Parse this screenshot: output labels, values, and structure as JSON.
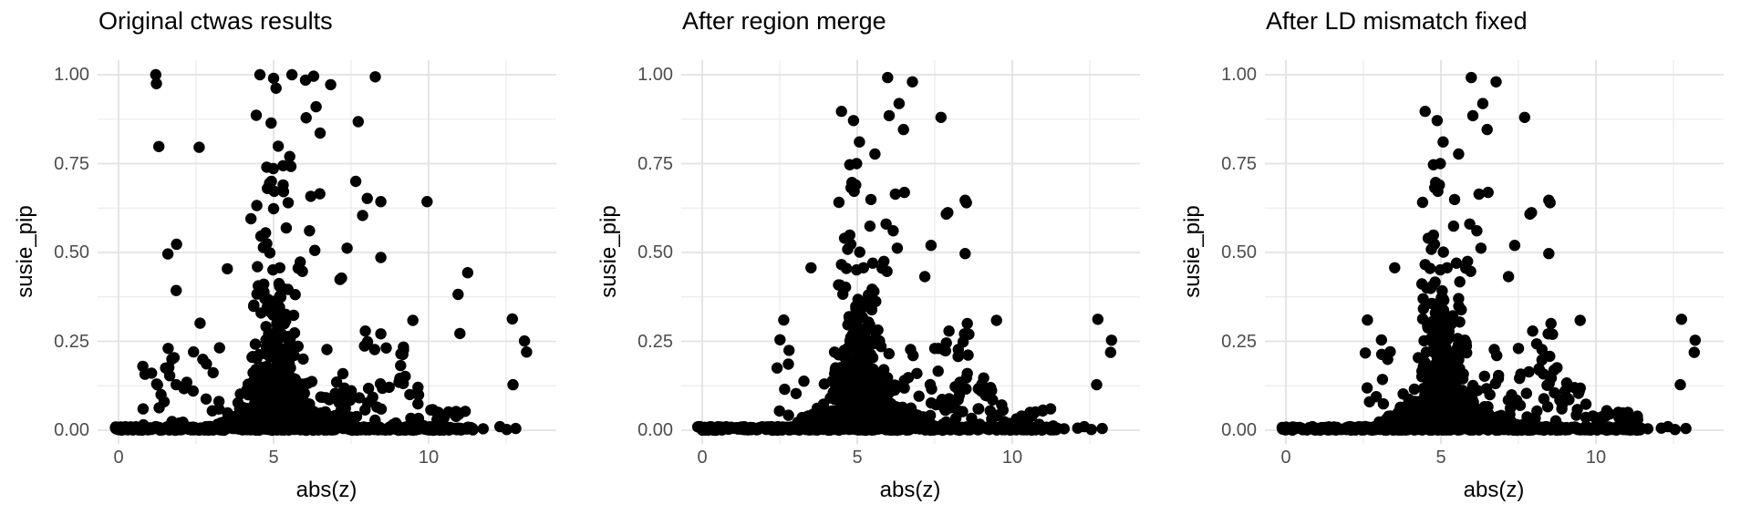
{
  "figure": {
    "background": "#ffffff",
    "point_color": "#000000",
    "grid_major_color": "#e2e2e2",
    "grid_minor_color": "#ebebeb",
    "tick_label_color": "#4d4d4d",
    "title_color": "#000000"
  },
  "chart_data": [
    {
      "type": "scatter",
      "title": "Original ctwas results",
      "xlabel": "abs(z)",
      "ylabel": "susie_pip",
      "xlim": [
        -0.675,
        14.175
      ],
      "ylim": [
        -0.038,
        1.042
      ],
      "xticks": [
        0,
        5,
        10
      ],
      "xticklabels": [
        "0",
        "5",
        "10"
      ],
      "yticks": [
        0,
        0.25,
        0.5,
        0.75,
        1
      ],
      "yticklabels": [
        "0.00",
        "0.25",
        "0.50",
        "0.75",
        "1.00"
      ],
      "grid_minor_x": [
        2.5,
        7.5,
        12.5
      ],
      "grid_minor_y": [
        0.125,
        0.375,
        0.625,
        0.875
      ],
      "legend": "none",
      "points": [
        [
          1.2,
          1.0
        ],
        [
          1.22,
          0.975
        ],
        [
          4.56,
          1.0
        ],
        [
          5.0,
          0.99
        ],
        [
          5.08,
          0.962
        ],
        [
          5.59,
          1.0
        ],
        [
          6.03,
          0.985
        ],
        [
          6.29,
          0.996
        ],
        [
          6.84,
          0.972
        ],
        [
          8.28,
          0.994
        ],
        [
          6.37,
          0.91
        ],
        [
          4.44,
          0.886
        ],
        [
          4.92,
          0.864
        ],
        [
          6.05,
          0.879
        ],
        [
          6.5,
          0.836
        ],
        [
          7.73,
          0.868
        ],
        [
          1.3,
          0.798
        ],
        [
          2.6,
          0.796
        ],
        [
          5.15,
          0.799
        ],
        [
          5.52,
          0.77
        ],
        [
          5.31,
          0.744
        ],
        [
          5.56,
          0.742
        ],
        [
          4.78,
          0.74
        ],
        [
          4.99,
          0.736
        ],
        [
          7.65,
          0.7
        ],
        [
          4.87,
          0.695
        ],
        [
          5.31,
          0.69
        ],
        [
          4.8,
          0.68
        ],
        [
          4.93,
          0.7
        ],
        [
          5.02,
          0.672
        ],
        [
          5.32,
          0.671
        ],
        [
          5.47,
          0.64
        ],
        [
          4.46,
          0.632
        ],
        [
          5.0,
          0.623
        ],
        [
          6.2,
          0.658
        ],
        [
          6.49,
          0.665
        ],
        [
          8.02,
          0.652
        ],
        [
          8.46,
          0.643
        ],
        [
          9.95,
          0.643
        ],
        [
          7.87,
          0.604
        ],
        [
          4.27,
          0.595
        ],
        [
          5.41,
          0.569
        ],
        [
          6.16,
          0.561
        ],
        [
          4.74,
          0.555
        ],
        [
          4.59,
          0.546
        ],
        [
          4.78,
          0.525
        ],
        [
          4.67,
          0.514
        ],
        [
          4.88,
          0.499
        ],
        [
          6.33,
          0.506
        ],
        [
          7.37,
          0.512
        ],
        [
          1.87,
          0.523
        ],
        [
          1.59,
          0.496
        ],
        [
          8.46,
          0.486
        ],
        [
          3.51,
          0.454
        ],
        [
          4.48,
          0.46
        ],
        [
          4.98,
          0.451
        ],
        [
          5.2,
          0.457
        ],
        [
          5.86,
          0.473
        ],
        [
          5.79,
          0.456
        ],
        [
          11.26,
          0.443
        ],
        [
          7.19,
          0.428
        ],
        [
          7.14,
          0.424
        ],
        [
          5.93,
          0.447
        ],
        [
          1.86,
          0.393
        ],
        [
          2.63,
          0.301
        ],
        [
          1.6,
          0.23
        ],
        [
          1.79,
          0.204
        ],
        [
          9.49,
          0.309
        ],
        [
          10.95,
          0.382
        ],
        [
          11.01,
          0.272
        ],
        [
          12.7,
          0.313
        ],
        [
          13.09,
          0.251
        ],
        [
          13.16,
          0.22
        ],
        [
          12.72,
          0.128
        ],
        [
          7.96,
          0.279
        ],
        [
          8.46,
          0.271
        ],
        [
          8.26,
          0.227
        ],
        [
          6.72,
          0.227
        ],
        [
          0.79,
          0.06
        ],
        [
          1.23,
          0.13
        ],
        [
          1.37,
          0.1
        ],
        [
          1.47,
          0.08
        ],
        [
          1.72,
          0.2
        ],
        [
          1.86,
          0.128
        ],
        [
          1.96,
          0.02
        ],
        [
          2.2,
          0.135
        ],
        [
          11.23,
          0.004
        ],
        [
          11.76,
          0.004
        ],
        [
          12.3,
          0.01
        ],
        [
          12.52,
          0.002
        ],
        [
          12.81,
          0.005
        ]
      ],
      "dense_clusters": [
        {
          "kind": "band",
          "x0": -0.15,
          "x1": 10.9,
          "y0": 0.0,
          "y1": 0.01,
          "n": 470
        },
        {
          "kind": "band",
          "x0": 10.9,
          "x1": 11.5,
          "y0": 0.0,
          "y1": 0.008,
          "n": 14
        },
        {
          "kind": "cone",
          "x0": 2.2,
          "x1": 8.6,
          "cx": 5.1,
          "y0": 0.008,
          "y1": 0.065,
          "n": 300
        },
        {
          "kind": "cone",
          "x0": 3.0,
          "x1": 7.4,
          "cx": 5.05,
          "y0": 0.03,
          "y1": 0.14,
          "n": 230
        },
        {
          "kind": "cone",
          "x0": 3.6,
          "x1": 6.7,
          "cx": 5.0,
          "y0": 0.1,
          "y1": 0.24,
          "n": 110
        },
        {
          "kind": "cone",
          "x0": 4.1,
          "x1": 6.3,
          "cx": 5.05,
          "y0": 0.2,
          "y1": 0.37,
          "n": 60
        },
        {
          "kind": "band",
          "x0": 4.35,
          "x1": 5.75,
          "y0": 0.28,
          "y1": 0.42,
          "n": 22
        },
        {
          "kind": "band",
          "x0": 6.4,
          "x1": 9.7,
          "y0": 0.015,
          "y1": 0.16,
          "n": 48
        },
        {
          "kind": "band",
          "x0": 7.6,
          "x1": 9.2,
          "y0": 0.16,
          "y1": 0.25,
          "n": 8
        },
        {
          "kind": "band",
          "x0": 9.7,
          "x1": 11.35,
          "y0": 0.004,
          "y1": 0.06,
          "n": 22
        },
        {
          "kind": "band",
          "x0": 2.4,
          "x1": 3.4,
          "y0": 0.03,
          "y1": 0.26,
          "n": 10
        },
        {
          "kind": "band",
          "x0": 0.55,
          "x1": 2.15,
          "y0": 0.015,
          "y1": 0.18,
          "n": 12
        }
      ]
    },
    {
      "type": "scatter",
      "title": "After region merge",
      "xlabel": "abs(z)",
      "ylabel": "susie_pip",
      "xlim": [
        -0.675,
        14.175
      ],
      "ylim": [
        -0.038,
        1.042
      ],
      "xticks": [
        0,
        5,
        10
      ],
      "xticklabels": [
        "0",
        "5",
        "10"
      ],
      "yticks": [
        0,
        0.25,
        0.5,
        0.75,
        1
      ],
      "yticklabels": [
        "0.00",
        "0.25",
        "0.50",
        "0.75",
        "1.00"
      ],
      "grid_minor_x": [
        2.5,
        7.5,
        12.5
      ],
      "grid_minor_y": [
        0.125,
        0.375,
        0.625,
        0.875
      ],
      "legend": "none",
      "points": [
        [
          5.98,
          0.992
        ],
        [
          6.78,
          0.98
        ],
        [
          6.35,
          0.919
        ],
        [
          4.49,
          0.897
        ],
        [
          4.88,
          0.871
        ],
        [
          6.03,
          0.885
        ],
        [
          7.7,
          0.88
        ],
        [
          6.49,
          0.846
        ],
        [
          5.07,
          0.811
        ],
        [
          5.57,
          0.777
        ],
        [
          4.76,
          0.747
        ],
        [
          4.98,
          0.75
        ],
        [
          4.83,
          0.697
        ],
        [
          4.95,
          0.69
        ],
        [
          4.8,
          0.682
        ],
        [
          4.9,
          0.672
        ],
        [
          5.44,
          0.649
        ],
        [
          6.23,
          0.664
        ],
        [
          6.52,
          0.669
        ],
        [
          4.41,
          0.641
        ],
        [
          8.48,
          0.647
        ],
        [
          8.52,
          0.64
        ],
        [
          7.87,
          0.608
        ],
        [
          7.92,
          0.612
        ],
        [
          5.41,
          0.574
        ],
        [
          6.16,
          0.561
        ],
        [
          4.76,
          0.549
        ],
        [
          4.59,
          0.54
        ],
        [
          4.79,
          0.523
        ],
        [
          4.69,
          0.509
        ],
        [
          5.08,
          0.501
        ],
        [
          6.29,
          0.512
        ],
        [
          7.38,
          0.52
        ],
        [
          8.48,
          0.497
        ],
        [
          5.93,
          0.58
        ],
        [
          4.65,
          0.455
        ],
        [
          3.51,
          0.457
        ],
        [
          4.49,
          0.466
        ],
        [
          4.98,
          0.451
        ],
        [
          5.2,
          0.457
        ],
        [
          5.86,
          0.475
        ],
        [
          5.8,
          0.456
        ],
        [
          7.18,
          0.432
        ],
        [
          5.5,
          0.47
        ],
        [
          5.96,
          0.447
        ],
        [
          2.63,
          0.31
        ],
        [
          9.49,
          0.309
        ],
        [
          12.76,
          0.312
        ],
        [
          13.2,
          0.253
        ],
        [
          13.17,
          0.219
        ],
        [
          12.72,
          0.128
        ],
        [
          7.96,
          0.279
        ],
        [
          8.46,
          0.271
        ],
        [
          8.26,
          0.227
        ],
        [
          6.72,
          0.227
        ],
        [
          7.5,
          0.23
        ],
        [
          6.8,
          0.21
        ],
        [
          8.55,
          0.3
        ],
        [
          8.6,
          0.27
        ],
        [
          9.0,
          0.11
        ],
        [
          9.3,
          0.12
        ],
        [
          8.9,
          0.06
        ],
        [
          10.3,
          0.04
        ],
        [
          11.67,
          0.004
        ],
        [
          12.11,
          0.006
        ],
        [
          12.32,
          0.01
        ],
        [
          12.55,
          0.002
        ],
        [
          12.9,
          0.005
        ]
      ],
      "dense_clusters": [
        {
          "kind": "band",
          "x0": -0.15,
          "x1": 11.45,
          "y0": 0.0,
          "y1": 0.01,
          "n": 490
        },
        {
          "kind": "cone",
          "x0": 2.2,
          "x1": 8.6,
          "cx": 5.1,
          "y0": 0.008,
          "y1": 0.065,
          "n": 300
        },
        {
          "kind": "cone",
          "x0": 3.0,
          "x1": 7.4,
          "cx": 5.05,
          "y0": 0.03,
          "y1": 0.14,
          "n": 230
        },
        {
          "kind": "cone",
          "x0": 3.6,
          "x1": 6.7,
          "cx": 5.0,
          "y0": 0.1,
          "y1": 0.24,
          "n": 110
        },
        {
          "kind": "cone",
          "x0": 4.1,
          "x1": 6.3,
          "cx": 5.05,
          "y0": 0.2,
          "y1": 0.37,
          "n": 60
        },
        {
          "kind": "band",
          "x0": 4.35,
          "x1": 5.75,
          "y0": 0.28,
          "y1": 0.42,
          "n": 22
        },
        {
          "kind": "band",
          "x0": 6.4,
          "x1": 9.7,
          "y0": 0.015,
          "y1": 0.16,
          "n": 48
        },
        {
          "kind": "band",
          "x0": 7.6,
          "x1": 9.2,
          "y0": 0.16,
          "y1": 0.25,
          "n": 8
        },
        {
          "kind": "band",
          "x0": 9.7,
          "x1": 11.35,
          "y0": 0.004,
          "y1": 0.06,
          "n": 22
        },
        {
          "kind": "band",
          "x0": 2.4,
          "x1": 3.4,
          "y0": 0.03,
          "y1": 0.26,
          "n": 10
        }
      ]
    },
    {
      "type": "scatter",
      "title": "After LD mismatch fixed",
      "xlabel": "abs(z)",
      "ylabel": "susie_pip",
      "xlim": [
        -0.675,
        14.175
      ],
      "ylim": [
        -0.038,
        1.042
      ],
      "xticks": [
        0,
        5,
        10
      ],
      "xticklabels": [
        "0",
        "5",
        "10"
      ],
      "yticks": [
        0,
        0.25,
        0.5,
        0.75,
        1
      ],
      "yticklabels": [
        "0.00",
        "0.25",
        "0.50",
        "0.75",
        "1.00"
      ],
      "grid_minor_x": [
        2.5,
        7.5,
        12.5
      ],
      "grid_minor_y": [
        0.125,
        0.375,
        0.625,
        0.875
      ],
      "legend": "none",
      "points": [
        [
          5.98,
          0.992
        ],
        [
          6.78,
          0.98
        ],
        [
          6.35,
          0.919
        ],
        [
          4.49,
          0.897
        ],
        [
          4.88,
          0.871
        ],
        [
          6.03,
          0.885
        ],
        [
          7.7,
          0.88
        ],
        [
          6.49,
          0.846
        ],
        [
          5.07,
          0.811
        ],
        [
          5.57,
          0.777
        ],
        [
          4.76,
          0.747
        ],
        [
          4.98,
          0.75
        ],
        [
          4.83,
          0.697
        ],
        [
          4.95,
          0.69
        ],
        [
          4.8,
          0.682
        ],
        [
          4.9,
          0.672
        ],
        [
          5.44,
          0.649
        ],
        [
          6.23,
          0.664
        ],
        [
          6.52,
          0.669
        ],
        [
          4.41,
          0.641
        ],
        [
          8.48,
          0.647
        ],
        [
          8.52,
          0.64
        ],
        [
          7.87,
          0.608
        ],
        [
          7.92,
          0.612
        ],
        [
          5.41,
          0.574
        ],
        [
          6.16,
          0.561
        ],
        [
          4.76,
          0.549
        ],
        [
          4.59,
          0.54
        ],
        [
          4.79,
          0.523
        ],
        [
          4.69,
          0.509
        ],
        [
          5.08,
          0.501
        ],
        [
          6.29,
          0.512
        ],
        [
          7.38,
          0.52
        ],
        [
          8.48,
          0.497
        ],
        [
          5.93,
          0.58
        ],
        [
          4.65,
          0.455
        ],
        [
          3.51,
          0.457
        ],
        [
          4.49,
          0.466
        ],
        [
          4.98,
          0.451
        ],
        [
          5.2,
          0.457
        ],
        [
          5.86,
          0.475
        ],
        [
          5.8,
          0.456
        ],
        [
          7.18,
          0.432
        ],
        [
          5.5,
          0.47
        ],
        [
          5.96,
          0.447
        ],
        [
          2.63,
          0.31
        ],
        [
          9.49,
          0.309
        ],
        [
          12.76,
          0.312
        ],
        [
          13.2,
          0.253
        ],
        [
          13.17,
          0.219
        ],
        [
          12.72,
          0.128
        ],
        [
          7.96,
          0.279
        ],
        [
          8.46,
          0.271
        ],
        [
          8.26,
          0.227
        ],
        [
          6.72,
          0.227
        ],
        [
          7.5,
          0.23
        ],
        [
          6.8,
          0.21
        ],
        [
          8.55,
          0.3
        ],
        [
          8.6,
          0.27
        ],
        [
          9.0,
          0.11
        ],
        [
          9.3,
          0.12
        ],
        [
          8.9,
          0.06
        ],
        [
          10.3,
          0.04
        ],
        [
          11.67,
          0.004
        ],
        [
          12.11,
          0.006
        ],
        [
          12.32,
          0.01
        ],
        [
          12.55,
          0.002
        ],
        [
          12.9,
          0.005
        ]
      ],
      "dense_clusters": [
        {
          "kind": "band",
          "x0": -0.15,
          "x1": 11.45,
          "y0": 0.0,
          "y1": 0.01,
          "n": 490
        },
        {
          "kind": "cone",
          "x0": 2.2,
          "x1": 8.6,
          "cx": 5.1,
          "y0": 0.008,
          "y1": 0.065,
          "n": 300
        },
        {
          "kind": "cone",
          "x0": 3.0,
          "x1": 7.4,
          "cx": 5.05,
          "y0": 0.03,
          "y1": 0.14,
          "n": 230
        },
        {
          "kind": "cone",
          "x0": 3.6,
          "x1": 6.7,
          "cx": 5.0,
          "y0": 0.1,
          "y1": 0.24,
          "n": 110
        },
        {
          "kind": "cone",
          "x0": 4.1,
          "x1": 6.3,
          "cx": 5.05,
          "y0": 0.2,
          "y1": 0.37,
          "n": 60
        },
        {
          "kind": "band",
          "x0": 4.35,
          "x1": 5.75,
          "y0": 0.28,
          "y1": 0.42,
          "n": 22
        },
        {
          "kind": "band",
          "x0": 6.4,
          "x1": 9.7,
          "y0": 0.015,
          "y1": 0.16,
          "n": 48
        },
        {
          "kind": "band",
          "x0": 7.6,
          "x1": 9.2,
          "y0": 0.16,
          "y1": 0.25,
          "n": 8
        },
        {
          "kind": "band",
          "x0": 9.7,
          "x1": 11.35,
          "y0": 0.004,
          "y1": 0.06,
          "n": 22
        },
        {
          "kind": "band",
          "x0": 2.4,
          "x1": 3.4,
          "y0": 0.03,
          "y1": 0.26,
          "n": 10
        }
      ]
    }
  ]
}
